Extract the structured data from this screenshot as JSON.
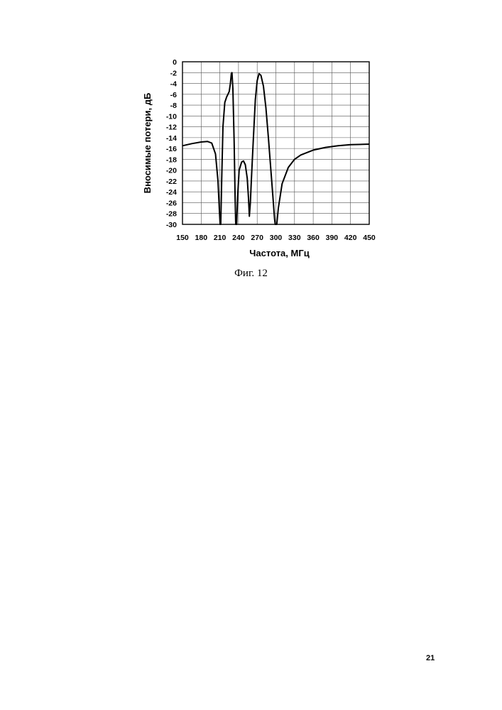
{
  "figure": {
    "caption": "Фиг. 12"
  },
  "page": {
    "number": "21"
  },
  "chart_data": {
    "type": "line",
    "xlabel": "Частота, МГц",
    "ylabel": "Вносимые потери, дБ",
    "xlim": [
      150,
      450
    ],
    "ylim": [
      -30,
      0
    ],
    "x_ticks": [
      150,
      180,
      210,
      240,
      270,
      300,
      330,
      360,
      390,
      420,
      450
    ],
    "y_ticks": [
      0,
      -2,
      -4,
      -6,
      -8,
      -10,
      -12,
      -14,
      -16,
      -18,
      -20,
      -22,
      -24,
      -26,
      -28,
      -30
    ],
    "grid": true,
    "series": [
      {
        "color": "#000000",
        "points": [
          [
            150,
            -15.5
          ],
          [
            165,
            -15.1
          ],
          [
            180,
            -14.8
          ],
          [
            190,
            -14.7
          ],
          [
            197,
            -15.0
          ],
          [
            203,
            -17.0
          ],
          [
            207,
            -22.0
          ],
          [
            209.5,
            -28.0
          ],
          [
            210.5,
            -30.0
          ],
          [
            211.5,
            -30.0
          ],
          [
            213,
            -22.0
          ],
          [
            215,
            -12.0
          ],
          [
            218,
            -7.5
          ],
          [
            221,
            -6.5
          ],
          [
            225,
            -5.5
          ],
          [
            227,
            -4.0
          ],
          [
            228.5,
            -2.2
          ],
          [
            229.5,
            -2.0
          ],
          [
            231,
            -5.0
          ],
          [
            233,
            -15.0
          ],
          [
            234.5,
            -25.0
          ],
          [
            235.5,
            -30.0
          ],
          [
            237,
            -30.0
          ],
          [
            238.5,
            -25.0
          ],
          [
            241,
            -20.0
          ],
          [
            245,
            -18.5
          ],
          [
            248,
            -18.3
          ],
          [
            251,
            -19.0
          ],
          [
            254,
            -21.5
          ],
          [
            256,
            -25.0
          ],
          [
            257.5,
            -28.5
          ],
          [
            259,
            -26.0
          ],
          [
            261,
            -21.0
          ],
          [
            264,
            -14.0
          ],
          [
            267,
            -7.0
          ],
          [
            270,
            -3.5
          ],
          [
            273,
            -2.2
          ],
          [
            276,
            -2.5
          ],
          [
            280,
            -4.5
          ],
          [
            284,
            -8.5
          ],
          [
            288,
            -14.0
          ],
          [
            292,
            -20.0
          ],
          [
            296,
            -26.0
          ],
          [
            298,
            -29.0
          ],
          [
            299,
            -30.0
          ],
          [
            301.5,
            -30.0
          ],
          [
            304,
            -27.0
          ],
          [
            310,
            -22.5
          ],
          [
            320,
            -19.5
          ],
          [
            330,
            -18.0
          ],
          [
            340,
            -17.2
          ],
          [
            360,
            -16.3
          ],
          [
            380,
            -15.8
          ],
          [
            400,
            -15.5
          ],
          [
            420,
            -15.3
          ],
          [
            450,
            -15.2
          ]
        ]
      }
    ]
  }
}
